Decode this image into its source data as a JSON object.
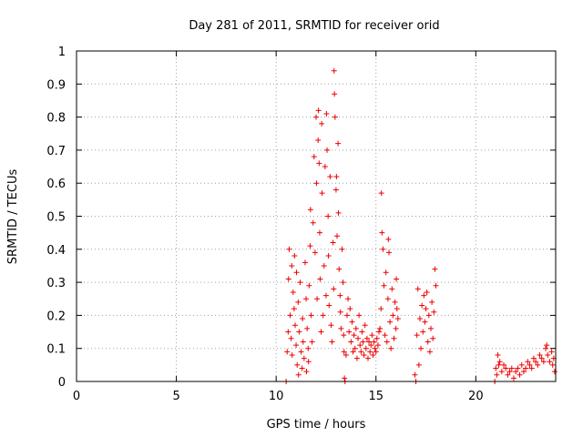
{
  "chart_data": {
    "type": "scatter",
    "title": "Day 281 of 2011, SRMTID for receiver orid",
    "xlabel": "GPS time / hours",
    "ylabel": "SRMTID / TECUs",
    "xlim": [
      0,
      24
    ],
    "ylim": [
      0,
      1
    ],
    "xticks": [
      "0",
      "5",
      "10",
      "15",
      "20"
    ],
    "yticks": [
      "0",
      "0.1",
      "0.2",
      "0.3",
      "0.4",
      "0.5",
      "0.6",
      "0.7",
      "0.8",
      "0.9",
      "1"
    ],
    "grid": true,
    "marker": "plus",
    "colors": {
      "series": "#ee0000"
    },
    "series": [
      {
        "points": [
          [
            10.5,
            0.0
          ],
          [
            10.55,
            0.09
          ],
          [
            10.6,
            0.15
          ],
          [
            10.62,
            0.31
          ],
          [
            10.65,
            0.4
          ],
          [
            10.7,
            0.2
          ],
          [
            10.75,
            0.13
          ],
          [
            10.78,
            0.35
          ],
          [
            10.8,
            0.08
          ],
          [
            10.85,
            0.27
          ],
          [
            10.9,
            0.22
          ],
          [
            10.92,
            0.38
          ],
          [
            10.95,
            0.17
          ],
          [
            11.0,
            0.11
          ],
          [
            11.02,
            0.33
          ],
          [
            11.05,
            0.05
          ],
          [
            11.1,
            0.24
          ],
          [
            11.12,
            0.02
          ],
          [
            11.15,
            0.15
          ],
          [
            11.2,
            0.3
          ],
          [
            11.25,
            0.09
          ],
          [
            11.3,
            0.04
          ],
          [
            11.32,
            0.19
          ],
          [
            11.35,
            0.12
          ],
          [
            11.4,
            0.07
          ],
          [
            11.45,
            0.36
          ],
          [
            11.5,
            0.25
          ],
          [
            11.52,
            0.03
          ],
          [
            11.55,
            0.16
          ],
          [
            11.6,
            0.1
          ],
          [
            11.62,
            0.06
          ],
          [
            11.65,
            0.29
          ],
          [
            11.7,
            0.41
          ],
          [
            11.72,
            0.52
          ],
          [
            11.75,
            0.2
          ],
          [
            11.8,
            0.12
          ],
          [
            11.85,
            0.48
          ],
          [
            11.9,
            0.68
          ],
          [
            11.95,
            0.39
          ],
          [
            12.0,
            0.8
          ],
          [
            12.02,
            0.6
          ],
          [
            12.05,
            0.25
          ],
          [
            12.1,
            0.73
          ],
          [
            12.12,
            0.82
          ],
          [
            12.15,
            0.66
          ],
          [
            12.18,
            0.45
          ],
          [
            12.2,
            0.31
          ],
          [
            12.25,
            0.15
          ],
          [
            12.28,
            0.78
          ],
          [
            12.3,
            0.57
          ],
          [
            12.35,
            0.2
          ],
          [
            12.4,
            0.35
          ],
          [
            12.45,
            0.65
          ],
          [
            12.5,
            0.26
          ],
          [
            12.52,
            0.81
          ],
          [
            12.55,
            0.7
          ],
          [
            12.6,
            0.5
          ],
          [
            12.62,
            0.38
          ],
          [
            12.65,
            0.23
          ],
          [
            12.7,
            0.62
          ],
          [
            12.75,
            0.17
          ],
          [
            12.8,
            0.12
          ],
          [
            12.85,
            0.42
          ],
          [
            12.88,
            0.28
          ],
          [
            12.9,
            0.94
          ],
          [
            12.92,
            0.87
          ],
          [
            12.95,
            0.8
          ],
          [
            13.0,
            0.58
          ],
          [
            13.02,
            0.62
          ],
          [
            13.05,
            0.44
          ],
          [
            13.1,
            0.72
          ],
          [
            13.12,
            0.51
          ],
          [
            13.15,
            0.34
          ],
          [
            13.2,
            0.26
          ],
          [
            13.22,
            0.21
          ],
          [
            13.25,
            0.16
          ],
          [
            13.3,
            0.4
          ],
          [
            13.35,
            0.3
          ],
          [
            13.38,
            0.14
          ],
          [
            13.4,
            0.09
          ],
          [
            13.42,
            0.01
          ],
          [
            13.45,
            0.0
          ],
          [
            13.5,
            0.08
          ],
          [
            13.55,
            0.2
          ],
          [
            13.6,
            0.25
          ],
          [
            13.65,
            0.15
          ],
          [
            13.7,
            0.22
          ],
          [
            13.75,
            0.12
          ],
          [
            13.8,
            0.18
          ],
          [
            13.85,
            0.09
          ],
          [
            13.9,
            0.14
          ],
          [
            13.95,
            0.1
          ],
          [
            14.0,
            0.16
          ],
          [
            14.05,
            0.07
          ],
          [
            14.1,
            0.13
          ],
          [
            14.15,
            0.2
          ],
          [
            14.2,
            0.11
          ],
          [
            14.25,
            0.09
          ],
          [
            14.3,
            0.15
          ],
          [
            14.35,
            0.12
          ],
          [
            14.4,
            0.08
          ],
          [
            14.45,
            0.17
          ],
          [
            14.5,
            0.1
          ],
          [
            14.55,
            0.13
          ],
          [
            14.6,
            0.07
          ],
          [
            14.65,
            0.12
          ],
          [
            14.7,
            0.09
          ],
          [
            14.75,
            0.11
          ],
          [
            14.8,
            0.14
          ],
          [
            14.85,
            0.08
          ],
          [
            14.9,
            0.12
          ],
          [
            14.95,
            0.1
          ],
          [
            15.0,
            0.09
          ],
          [
            15.05,
            0.13
          ],
          [
            15.1,
            0.11
          ],
          [
            15.15,
            0.15
          ],
          [
            15.2,
            0.16
          ],
          [
            15.25,
            0.22
          ],
          [
            15.27,
            0.57
          ],
          [
            15.3,
            0.45
          ],
          [
            15.35,
            0.4
          ],
          [
            15.4,
            0.29
          ],
          [
            15.45,
            0.14
          ],
          [
            15.5,
            0.33
          ],
          [
            15.55,
            0.12
          ],
          [
            15.6,
            0.25
          ],
          [
            15.62,
            0.43
          ],
          [
            15.65,
            0.39
          ],
          [
            15.7,
            0.18
          ],
          [
            15.75,
            0.1
          ],
          [
            15.8,
            0.28
          ],
          [
            15.85,
            0.2
          ],
          [
            15.9,
            0.13
          ],
          [
            15.95,
            0.24
          ],
          [
            16.0,
            0.16
          ],
          [
            16.02,
            0.31
          ],
          [
            16.05,
            0.22
          ],
          [
            16.1,
            0.19
          ],
          [
            16.95,
            0.02
          ],
          [
            17.0,
            0.0
          ],
          [
            17.05,
            0.14
          ],
          [
            17.1,
            0.28
          ],
          [
            17.15,
            0.05
          ],
          [
            17.2,
            0.19
          ],
          [
            17.25,
            0.1
          ],
          [
            17.3,
            0.23
          ],
          [
            17.35,
            0.15
          ],
          [
            17.4,
            0.26
          ],
          [
            17.45,
            0.18
          ],
          [
            17.5,
            0.22
          ],
          [
            17.55,
            0.27
          ],
          [
            17.6,
            0.12
          ],
          [
            17.65,
            0.2
          ],
          [
            17.7,
            0.09
          ],
          [
            17.75,
            0.16
          ],
          [
            17.8,
            0.24
          ],
          [
            17.85,
            0.13
          ],
          [
            17.9,
            0.21
          ],
          [
            17.95,
            0.34
          ],
          [
            18.0,
            0.29
          ],
          [
            20.95,
            0.0
          ],
          [
            21.0,
            0.04
          ],
          [
            21.05,
            0.02
          ],
          [
            21.1,
            0.08
          ],
          [
            21.15,
            0.05
          ],
          [
            21.2,
            0.06
          ],
          [
            21.3,
            0.03
          ],
          [
            21.4,
            0.05
          ],
          [
            21.5,
            0.04
          ],
          [
            21.6,
            0.02
          ],
          [
            21.7,
            0.03
          ],
          [
            21.8,
            0.04
          ],
          [
            21.9,
            0.01
          ],
          [
            22.0,
            0.03
          ],
          [
            22.1,
            0.04
          ],
          [
            22.2,
            0.02
          ],
          [
            22.3,
            0.05
          ],
          [
            22.4,
            0.03
          ],
          [
            22.5,
            0.04
          ],
          [
            22.6,
            0.06
          ],
          [
            22.7,
            0.05
          ],
          [
            22.8,
            0.04
          ],
          [
            22.9,
            0.07
          ],
          [
            23.0,
            0.06
          ],
          [
            23.1,
            0.05
          ],
          [
            23.2,
            0.08
          ],
          [
            23.3,
            0.07
          ],
          [
            23.4,
            0.06
          ],
          [
            23.5,
            0.1
          ],
          [
            23.55,
            0.11
          ],
          [
            23.6,
            0.08
          ],
          [
            23.7,
            0.06
          ],
          [
            23.8,
            0.09
          ],
          [
            23.85,
            0.05
          ],
          [
            23.9,
            0.07
          ],
          [
            23.95,
            0.03
          ]
        ]
      }
    ]
  }
}
